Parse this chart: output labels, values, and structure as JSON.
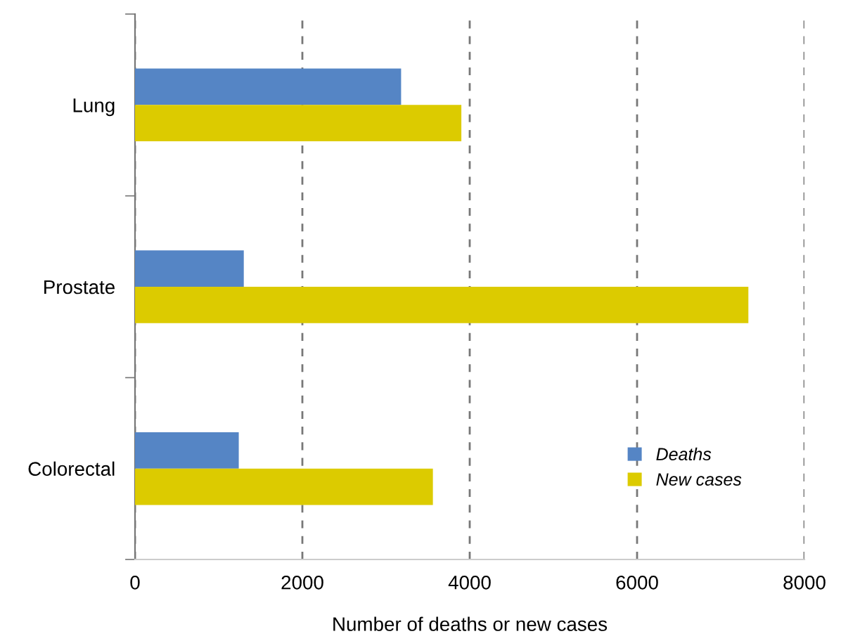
{
  "chart_data": {
    "type": "bar",
    "orientation": "horizontal",
    "xlabel": "Number of deaths or new cases",
    "categories": [
      "Lung",
      "Prostate",
      "Colorectal"
    ],
    "series": [
      {
        "name": "Deaths",
        "color": "#5585c5",
        "values": [
          3180,
          1300,
          1240
        ]
      },
      {
        "name": "New cases",
        "color": "#dccb00",
        "values": [
          3900,
          7330,
          3560
        ]
      }
    ],
    "xlim": [
      0,
      8000
    ],
    "xticks": [
      0,
      2000,
      4000,
      6000,
      8000
    ],
    "grid": "x",
    "legend": "bottom right"
  }
}
